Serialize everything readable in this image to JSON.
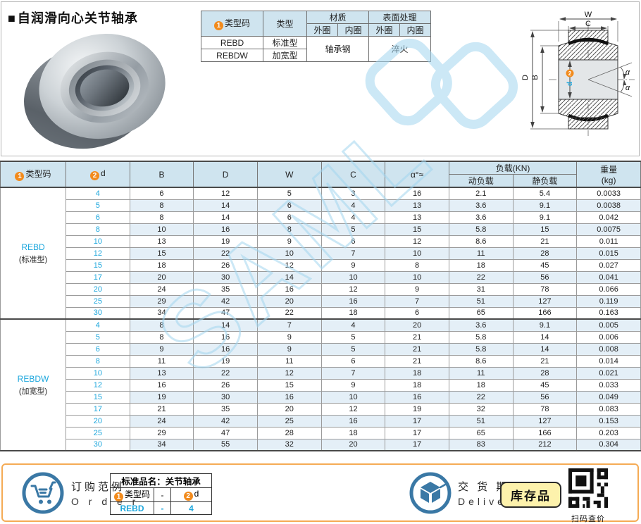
{
  "page": {
    "title_marker": "■",
    "title": "自润滑向心关节轴承",
    "watermark": "SAML"
  },
  "badges": {
    "one": "1",
    "two": "2"
  },
  "spec_table": {
    "headers": {
      "type_code": "类型码",
      "type": "类型",
      "material": "材质",
      "surface": "表面处理",
      "outer": "外圈",
      "inner": "内圈"
    },
    "rows": [
      {
        "code": "REBD",
        "type": "标准型"
      },
      {
        "code": "REBDW",
        "type": "加宽型"
      }
    ],
    "material_value": "轴承钢",
    "surface_value": "淬火"
  },
  "diagram": {
    "w": "W",
    "c": "C",
    "d_outer": "D",
    "b": "B",
    "d_bore": "d",
    "alpha": "α"
  },
  "main_table": {
    "headers": {
      "type_code": "类型码",
      "d": "d",
      "b": "B",
      "dd": "D",
      "w": "W",
      "c": "C",
      "alpha": "α°≈",
      "load": "负载(KN)",
      "dyn": "动负载",
      "stat": "静负载",
      "weight": "重量",
      "weight_unit": "(kg)"
    },
    "groups": [
      {
        "code": "REBD",
        "name": "(标准型)",
        "rows": [
          [
            "4",
            "6",
            "12",
            "5",
            "3",
            "16",
            "2.1",
            "5.4",
            "0.0033"
          ],
          [
            "5",
            "8",
            "14",
            "6",
            "4",
            "13",
            "3.6",
            "9.1",
            "0.0038"
          ],
          [
            "6",
            "8",
            "14",
            "6",
            "4",
            "13",
            "3.6",
            "9.1",
            "0.042"
          ],
          [
            "8",
            "10",
            "16",
            "8",
            "5",
            "15",
            "5.8",
            "15",
            "0.0075"
          ],
          [
            "10",
            "13",
            "19",
            "9",
            "6",
            "12",
            "8.6",
            "21",
            "0.011"
          ],
          [
            "12",
            "15",
            "22",
            "10",
            "7",
            "10",
            "11",
            "28",
            "0.015"
          ],
          [
            "15",
            "18",
            "26",
            "12",
            "9",
            "8",
            "18",
            "45",
            "0.027"
          ],
          [
            "17",
            "20",
            "30",
            "14",
            "10",
            "10",
            "22",
            "56",
            "0.041"
          ],
          [
            "20",
            "24",
            "35",
            "16",
            "12",
            "9",
            "31",
            "78",
            "0.066"
          ],
          [
            "25",
            "29",
            "42",
            "20",
            "16",
            "7",
            "51",
            "127",
            "0.119"
          ],
          [
            "30",
            "34",
            "47",
            "22",
            "18",
            "6",
            "65",
            "166",
            "0.163"
          ]
        ]
      },
      {
        "code": "REBDW",
        "name": "(加宽型)",
        "rows": [
          [
            "4",
            "8",
            "14",
            "7",
            "4",
            "20",
            "3.6",
            "9.1",
            "0.005"
          ],
          [
            "5",
            "8",
            "16",
            "9",
            "5",
            "21",
            "5.8",
            "14",
            "0.006"
          ],
          [
            "6",
            "9",
            "16",
            "9",
            "5",
            "21",
            "5.8",
            "14",
            "0.008"
          ],
          [
            "8",
            "11",
            "19",
            "11",
            "6",
            "21",
            "8.6",
            "21",
            "0.014"
          ],
          [
            "10",
            "13",
            "22",
            "12",
            "7",
            "18",
            "11",
            "28",
            "0.021"
          ],
          [
            "12",
            "16",
            "26",
            "15",
            "9",
            "18",
            "18",
            "45",
            "0.033"
          ],
          [
            "15",
            "19",
            "30",
            "16",
            "10",
            "16",
            "22",
            "56",
            "0.049"
          ],
          [
            "17",
            "21",
            "35",
            "20",
            "12",
            "19",
            "32",
            "78",
            "0.083"
          ],
          [
            "20",
            "24",
            "42",
            "25",
            "16",
            "17",
            "51",
            "127",
            "0.153"
          ],
          [
            "25",
            "29",
            "47",
            "28",
            "18",
            "17",
            "65",
            "166",
            "0.203"
          ],
          [
            "30",
            "34",
            "55",
            "32",
            "20",
            "17",
            "83",
            "212",
            "0.304"
          ]
        ]
      }
    ]
  },
  "footer": {
    "order": {
      "label_cn": "订购范例",
      "label_en": "O r d e r",
      "table_title": "标准品名：关节轴承",
      "col_code": "类型码",
      "col_d": "d",
      "dash_header": "-",
      "example_code": "REBD",
      "dash_value": "-",
      "example_d": "4"
    },
    "delivery": {
      "label_cn": "交 货 期",
      "label_en": "Delivery",
      "stock_badge": "库存品",
      "qr_caption": "扫码查价"
    }
  },
  "colors": {
    "accent_blue": "#1ea7dd",
    "badge_orange": "#f28b1d",
    "header_bg": "#cfe4ef",
    "row_alt": "#e4eff7",
    "footer_border": "#f5ab55",
    "icon_blue": "#3a78a5",
    "stock_badge_bg": "#fdf2ac",
    "watermark_blue": "#a3d6ef"
  }
}
